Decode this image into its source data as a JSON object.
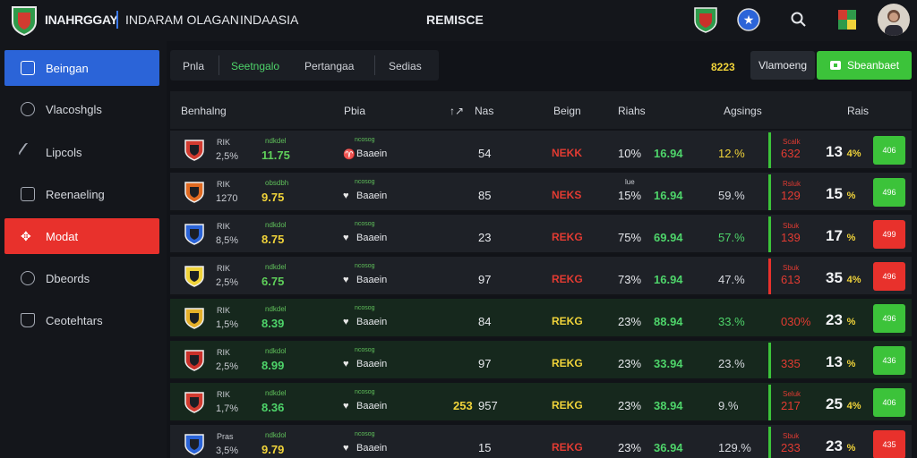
{
  "topbar": {
    "brand": "INAHRGGAY",
    "nav_a": "INDARAM OLAGAN",
    "nav_b": "INDAASIA",
    "center_title": "REMISCE",
    "icons": [
      "team-crest-icon",
      "star-badge-icon",
      "search-icon",
      "flag-icon",
      "user-avatar"
    ]
  },
  "sidebar": {
    "items": [
      {
        "label": "Beingan",
        "icon": "grid-icon",
        "state": "active-blue"
      },
      {
        "label": "Vlacoshgls",
        "icon": "shield-icon",
        "state": ""
      },
      {
        "label": "Lipcols",
        "icon": "pen-icon",
        "state": ""
      },
      {
        "label": "Reenaeling",
        "icon": "check-icon",
        "state": ""
      },
      {
        "label": "Modat",
        "icon": "move-icon",
        "state": "active-red"
      },
      {
        "label": "Dbeords",
        "icon": "bell-icon",
        "state": ""
      },
      {
        "label": "Ceotehtars",
        "icon": "chart-icon",
        "state": ""
      }
    ]
  },
  "tabs": [
    {
      "label": "Pnla",
      "active": false
    },
    {
      "label": "Seetngalo",
      "active": true
    },
    {
      "label": "Pertangaa",
      "active": false
    },
    {
      "label": "Sedias",
      "active": false
    }
  ],
  "actions": {
    "odds_figure": "8223",
    "secondary": "Vlamoeng",
    "primary": "Sbeanbaet"
  },
  "table": {
    "headers": [
      "Benhalng",
      "Pbia",
      "Nas",
      "Beign",
      "Riahs",
      "Agsings",
      "Rais"
    ],
    "header_arrow": "↑↗",
    "rows": [
      {
        "ab1": "RIK",
        "ab2": "2,5%",
        "mid_lbl": "ndkdel",
        "mid": "11.75",
        "mid_c": "#5fd05a",
        "mk_lbl": "ncosog",
        "mk_ico": "♈",
        "mk": "Baaein",
        "extra": "",
        "num": "54",
        "status": "NEKK",
        "status_c": "#e23b32",
        "pct_sm": "",
        "pct": "10%",
        "val2": "16.94",
        "val2_c": "#4ed46a",
        "val3": "12.%",
        "val3_c": "#f0d33a",
        "bar_c": "#3cc33a",
        "r_sm": "Scalk",
        "r_sm_c": "#e23b32",
        "r_val": "632",
        "r_val_c": "#e23b32",
        "big": "13",
        "big_s": "4%",
        "pill": "406",
        "pill_c": "#3cc33a",
        "green": false
      },
      {
        "ab1": "RIK",
        "ab2": "1270",
        "mid_lbl": "obsdbh",
        "mid": "9.75",
        "mid_c": "#f0d33a",
        "mk_lbl": "ncosog",
        "mk_ico": "♥",
        "mk": "Baaein",
        "extra": "",
        "num": "85",
        "status": "NEKS",
        "status_c": "#e23b32",
        "pct_sm": "lue",
        "pct": "15%",
        "val2": "16.94",
        "val2_c": "#4ed46a",
        "val3": "59.%",
        "val3_c": "#d6d9df",
        "bar_c": "#3cc33a",
        "r_sm": "Rsluk",
        "r_sm_c": "#e23b32",
        "r_val": "129",
        "r_val_c": "#e23b32",
        "big": "15",
        "big_s": "%",
        "pill": "496",
        "pill_c": "#3cc33a",
        "green": false
      },
      {
        "ab1": "RIK",
        "ab2": "8,5%",
        "mid_lbl": "ndkdol",
        "mid": "8.75",
        "mid_c": "#f0d33a",
        "mk_lbl": "ncosog",
        "mk_ico": "♥",
        "mk": "Baaein",
        "extra": "",
        "num": "23",
        "status": "REKG",
        "status_c": "#e23b32",
        "pct_sm": "",
        "pct": "75%",
        "val2": "69.94",
        "val2_c": "#4ed46a",
        "val3": "57.%",
        "val3_c": "#4ed46a",
        "bar_c": "#3cc33a",
        "r_sm": "Sbuk",
        "r_sm_c": "#e23b32",
        "r_val": "139",
        "r_val_c": "#e23b32",
        "big": "17",
        "big_s": "%",
        "pill": "499",
        "pill_c": "#e8312c",
        "green": false
      },
      {
        "ab1": "RIK",
        "ab2": "2,5%",
        "mid_lbl": "ndkdel",
        "mid": "6.75",
        "mid_c": "#5fd05a",
        "mk_lbl": "ncosog",
        "mk_ico": "♥",
        "mk": "Baaein",
        "extra": "",
        "num": "97",
        "status": "REKG",
        "status_c": "#e23b32",
        "pct_sm": "",
        "pct": "73%",
        "val2": "16.94",
        "val2_c": "#4ed46a",
        "val3": "47.%",
        "val3_c": "#d6d9df",
        "bar_c": "#e8312c",
        "r_sm": "Sbuk",
        "r_sm_c": "#e23b32",
        "r_val": "613",
        "r_val_c": "#e23b32",
        "big": "35",
        "big_s": "4%",
        "pill": "496",
        "pill_c": "#e8312c",
        "green": false
      },
      {
        "ab1": "RIK",
        "ab2": "1,5%",
        "mid_lbl": "ndkdel",
        "mid": "8.39",
        "mid_c": "#4ed46a",
        "mk_lbl": "ncosog",
        "mk_ico": "♥",
        "mk": "Baaein",
        "extra": "",
        "num": "84",
        "status": "REKG",
        "status_c": "#f0d33a",
        "pct_sm": "",
        "pct": "23%",
        "val2": "88.94",
        "val2_c": "#4ed46a",
        "val3": "33.%",
        "val3_c": "#4ed46a",
        "bar_c": "",
        "r_sm": "",
        "r_sm_c": "#e23b32",
        "r_val": "030%",
        "r_val_c": "#e23b32",
        "big": "23",
        "big_s": "%",
        "pill": "496",
        "pill_c": "#3cc33a",
        "green": true
      },
      {
        "ab1": "RIK",
        "ab2": "2,5%",
        "mid_lbl": "ndkdol",
        "mid": "8.99",
        "mid_c": "#4ed46a",
        "mk_lbl": "ncosog",
        "mk_ico": "♥",
        "mk": "Baaein",
        "extra": "",
        "num": "97",
        "status": "REKG",
        "status_c": "#f0d33a",
        "pct_sm": "",
        "pct": "23%",
        "val2": "33.94",
        "val2_c": "#4ed46a",
        "val3": "23.%",
        "val3_c": "#d6d9df",
        "bar_c": "#3cc33a",
        "r_sm": "",
        "r_sm_c": "#e23b32",
        "r_val": "335",
        "r_val_c": "#e23b32",
        "big": "13",
        "big_s": "%",
        "pill": "436",
        "pill_c": "#3cc33a",
        "green": true
      },
      {
        "ab1": "RIK",
        "ab2": "1,7%",
        "mid_lbl": "ndkdel",
        "mid": "8.36",
        "mid_c": "#4ed46a",
        "mk_lbl": "ncosog",
        "mk_ico": "♥",
        "mk": "Baaein",
        "extra": "253",
        "num": "957",
        "status": "REKG",
        "status_c": "#f0d33a",
        "pct_sm": "",
        "pct": "23%",
        "val2": "38.94",
        "val2_c": "#4ed46a",
        "val3": "9.%",
        "val3_c": "#d6d9df",
        "bar_c": "#3cc33a",
        "r_sm": "Seluk",
        "r_sm_c": "#e23b32",
        "r_val": "217",
        "r_val_c": "#e23b32",
        "big": "25",
        "big_s": "4%",
        "pill": "406",
        "pill_c": "#3cc33a",
        "green": true
      },
      {
        "ab1": "Pras",
        "ab2": "3,5%",
        "mid_lbl": "ndkdol",
        "mid": "9.79",
        "mid_c": "#f0d33a",
        "mk_lbl": "ncosog",
        "mk_ico": "♥",
        "mk": "Baaein",
        "extra": "",
        "num": "15",
        "status": "REKG",
        "status_c": "#e23b32",
        "pct_sm": "",
        "pct": "23%",
        "val2": "36.94",
        "val2_c": "#4ed46a",
        "val3": "129.%",
        "val3_c": "#d6d9df",
        "bar_c": "#3cc33a",
        "r_sm": "Sbuk",
        "r_sm_c": "#e23b32",
        "r_val": "233",
        "r_val_c": "#e23b32",
        "big": "23",
        "big_s": "%",
        "pill": "435",
        "pill_c": "#e8312c",
        "green": false
      }
    ]
  }
}
